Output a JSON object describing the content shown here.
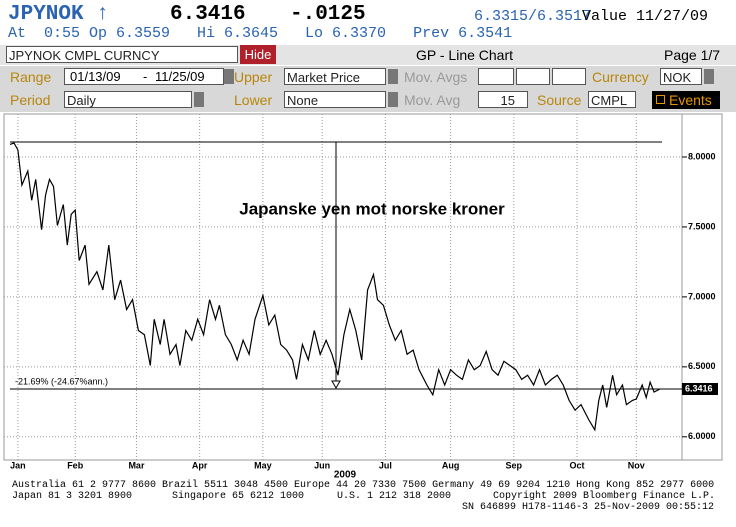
{
  "header": {
    "ticker": "JPYNOK ↑",
    "last": "6.3416",
    "change": "-.0125",
    "bid_ask": "6.3315/6.3517",
    "value_date": "Value 11/27/09",
    "quote_line": "At  0:55 Op 6.3559   Hi 6.3645   Lo 6.3370   Prev 6.3541"
  },
  "toolbar": {
    "security": "JPYNOK CMPL CURNCY",
    "hide": "Hide",
    "function": "GP - Line Chart",
    "page": "Page 1/7"
  },
  "form": {
    "range_label": "Range",
    "range_start": "01/13/09",
    "range_sep": "-",
    "range_end": "11/25/09",
    "upper_label": "Upper",
    "upper": "Market Price",
    "mov_avgs_label": "Mov. Avgs",
    "currency_label": "Currency",
    "currency": "NOK",
    "period_label": "Period",
    "period": "Daily",
    "lower_label": "Lower",
    "lower": "None",
    "mov_avg_label": "Mov. Avg",
    "mov_avg": "15",
    "source_label": "Source",
    "source": "CMPL",
    "events": "Events"
  },
  "chart_data": {
    "type": "line",
    "title": "Japanske yen mot norske kroner",
    "x_axis_label": "2009",
    "color": "#000000",
    "grid": true,
    "xlim": [
      0,
      330
    ],
    "xticks": [
      {
        "value": 4,
        "label": "Jan"
      },
      {
        "value": 33,
        "label": "Feb"
      },
      {
        "value": 64,
        "label": "Mar"
      },
      {
        "value": 96,
        "label": "Apr"
      },
      {
        "value": 128,
        "label": "May"
      },
      {
        "value": 158,
        "label": "Jun"
      },
      {
        "value": 190,
        "label": "Jul"
      },
      {
        "value": 223,
        "label": "Aug"
      },
      {
        "value": 255,
        "label": "Sep"
      },
      {
        "value": 287,
        "label": "Oct"
      },
      {
        "value": 317,
        "label": "Nov"
      }
    ],
    "ylim": [
      5.87,
      8.3
    ],
    "yticks": [
      {
        "value": 6,
        "label": "6.0000"
      },
      {
        "value": 6.5,
        "label": "6.5000"
      },
      {
        "value": 7,
        "label": "7.0000"
      },
      {
        "value": 7.5,
        "label": "7.5000"
      },
      {
        "value": 8,
        "label": "8.0000"
      }
    ],
    "x": [
      0,
      2,
      4,
      6,
      9,
      11,
      13,
      16,
      18,
      20,
      22,
      24,
      27,
      29,
      31,
      33,
      35,
      38,
      40,
      44,
      47,
      50,
      53,
      56,
      59,
      62,
      65,
      68,
      71,
      73,
      76,
      78,
      81,
      84,
      86,
      89,
      92,
      95,
      98,
      101,
      104,
      106,
      109,
      112,
      115,
      118,
      121,
      124,
      128,
      131,
      134,
      137,
      140,
      143,
      145,
      148,
      151,
      154,
      157,
      160,
      163,
      166,
      169,
      172,
      175,
      178,
      181,
      184,
      186,
      189,
      192,
      195,
      198,
      201,
      204,
      207,
      211,
      214,
      217,
      220,
      223,
      226,
      229,
      232,
      235,
      238,
      241,
      244,
      247,
      250,
      253,
      256,
      259,
      262,
      265,
      268,
      271,
      274,
      277,
      280,
      283,
      286,
      289,
      293,
      296,
      298,
      300,
      302,
      305,
      307,
      310,
      312,
      315,
      317,
      320,
      322,
      324,
      326,
      329
    ],
    "values": [
      8.09,
      8.1,
      8.05,
      7.8,
      7.9,
      7.69,
      7.84,
      7.48,
      7.73,
      7.84,
      7.79,
      7.51,
      7.66,
      7.37,
      7.59,
      7.62,
      7.26,
      7.37,
      7.09,
      7.18,
      7.05,
      7.37,
      6.98,
      7.12,
      6.91,
      6.98,
      6.76,
      6.73,
      6.51,
      6.84,
      6.66,
      6.84,
      6.59,
      6.66,
      6.51,
      6.76,
      6.69,
      6.84,
      6.73,
      6.98,
      6.84,
      6.94,
      6.73,
      6.66,
      6.55,
      6.69,
      6.59,
      6.84,
      7.01,
      6.8,
      6.87,
      6.66,
      6.62,
      6.55,
      6.41,
      6.66,
      6.55,
      6.76,
      6.59,
      6.69,
      6.59,
      6.44,
      6.73,
      6.91,
      6.76,
      6.55,
      7.05,
      7.16,
      6.98,
      6.94,
      6.8,
      6.69,
      6.76,
      6.59,
      6.62,
      6.48,
      6.37,
      6.3,
      6.48,
      6.37,
      6.48,
      6.44,
      6.41,
      6.55,
      6.48,
      6.51,
      6.61,
      6.48,
      6.44,
      6.54,
      6.51,
      6.48,
      6.41,
      6.44,
      6.37,
      6.48,
      6.37,
      6.41,
      6.44,
      6.37,
      6.26,
      6.19,
      6.23,
      6.12,
      6.05,
      6.26,
      6.37,
      6.21,
      6.44,
      6.3,
      6.37,
      6.23,
      6.26,
      6.27,
      6.37,
      6.28,
      6.39,
      6.32,
      6.3416
    ],
    "hlines": [
      8.107
    ],
    "reference_lines": [
      {
        "value": 6.3416,
        "label": "-21.69% (-24.67%ann.)"
      }
    ],
    "vline_x": 165
  },
  "footer": [
    "Australia 61 2 9777 8600 Brazil 5511 3048 4500 Europe 44 20 7330 7500 Germany 49 69 9204 1210 Hong Kong 852 2977 6000",
    "Japan 81 3 3201 8900",
    "Singapore 65 6212 1000",
    "U.S. 1 212 318 2000",
    "Copyright 2009 Bloomberg Finance L.P.",
    "SN 646899 H178-1146-3 25-Nov-2009 00:55:12"
  ]
}
